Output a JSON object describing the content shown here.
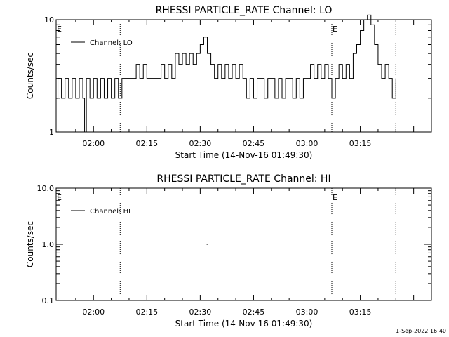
{
  "footer": {
    "timestamp": "1-Sep-2022 16:40"
  },
  "chart_data": [
    {
      "type": "line",
      "title": "RHESSI PARTICLE_RATE Channel: LO",
      "xlabel": "Start Time (14-Nov-16 01:49:30)",
      "ylabel": "Counts/sec",
      "yscale": "log",
      "xlim": [
        "01:49:30",
        "03:35:00"
      ],
      "ylim": [
        1,
        10
      ],
      "yticks": [
        1,
        10
      ],
      "ytick_labels": [
        "1",
        "10"
      ],
      "xtick_labels": [
        "02:00",
        "02:15",
        "02:30",
        "02:45",
        "03:00",
        "03:15"
      ],
      "grid": false,
      "legend_position": "top-left",
      "vlines": [
        "02:07:30",
        "03:07:00",
        "03:25:00"
      ],
      "markers": [
        {
          "x": "01:49:30",
          "label": "E"
        },
        {
          "x": "03:07:00",
          "label": "E"
        }
      ],
      "series": [
        {
          "name": "Channel: LO",
          "x": [
            "01:49:30",
            "01:50:00",
            "01:51:00",
            "01:52:00",
            "01:53:00",
            "01:54:00",
            "01:55:00",
            "01:56:00",
            "01:57:00",
            "01:57:30",
            "01:58:00",
            "01:59:00",
            "02:00:00",
            "02:01:00",
            "02:02:00",
            "02:03:00",
            "02:04:00",
            "02:05:00",
            "02:06:00",
            "02:07:00",
            "02:08:00",
            "02:10:00",
            "02:12:00",
            "02:13:00",
            "02:14:00",
            "02:15:00",
            "02:17:00",
            "02:19:00",
            "02:20:00",
            "02:21:00",
            "02:22:00",
            "02:23:00",
            "02:24:00",
            "02:25:00",
            "02:26:00",
            "02:27:00",
            "02:28:00",
            "02:29:00",
            "02:30:00",
            "02:31:00",
            "02:32:00",
            "02:33:00",
            "02:34:00",
            "02:35:00",
            "02:36:00",
            "02:37:00",
            "02:38:00",
            "02:39:00",
            "02:40:00",
            "02:41:00",
            "02:42:00",
            "02:43:00",
            "02:44:00",
            "02:45:00",
            "02:46:00",
            "02:47:00",
            "02:48:00",
            "02:49:00",
            "02:50:00",
            "02:51:00",
            "02:52:00",
            "02:53:00",
            "02:54:00",
            "02:55:00",
            "02:56:00",
            "02:57:00",
            "02:58:00",
            "02:59:00",
            "03:00:00",
            "03:01:00",
            "03:02:00",
            "03:03:00",
            "03:04:00",
            "03:05:00",
            "03:06:00",
            "03:07:00",
            "03:08:00",
            "03:09:00",
            "03:10:00",
            "03:11:00",
            "03:12:00",
            "03:13:00",
            "03:14:00",
            "03:15:00",
            "03:16:00",
            "03:17:00",
            "03:18:00",
            "03:19:00",
            "03:20:00",
            "03:21:00",
            "03:22:00",
            "03:23:00",
            "03:24:00",
            "03:25:00"
          ],
          "y": [
            2,
            3,
            2,
            3,
            2,
            3,
            2,
            3,
            2,
            1,
            3,
            2,
            3,
            2,
            3,
            2,
            3,
            2,
            3,
            2,
            3,
            3,
            4,
            3,
            4,
            3,
            3,
            4,
            3,
            4,
            3,
            5,
            4,
            5,
            4,
            5,
            4,
            5,
            6,
            7,
            5,
            4,
            3,
            4,
            3,
            4,
            3,
            4,
            3,
            4,
            3,
            2,
            3,
            2,
            3,
            3,
            2,
            3,
            3,
            2,
            3,
            2,
            3,
            3,
            2,
            3,
            2,
            3,
            3,
            4,
            3,
            4,
            3,
            4,
            3,
            2,
            3,
            4,
            3,
            4,
            3,
            5,
            6,
            8,
            10,
            11,
            9,
            6,
            4,
            3,
            4,
            3,
            2,
            3
          ]
        }
      ]
    },
    {
      "type": "line",
      "title": "RHESSI PARTICLE_RATE Channel: HI",
      "xlabel": "Start Time (14-Nov-16 01:49:30)",
      "ylabel": "Counts/sec",
      "yscale": "log",
      "xlim": [
        "01:49:30",
        "03:35:00"
      ],
      "ylim": [
        0.1,
        10
      ],
      "yticks": [
        0.1,
        1,
        10
      ],
      "ytick_labels": [
        "0.1",
        "1.0",
        "10.0"
      ],
      "xtick_labels": [
        "02:00",
        "02:15",
        "02:30",
        "02:45",
        "03:00",
        "03:15"
      ],
      "grid": false,
      "legend_position": "top-left",
      "vlines": [
        "02:07:30",
        "03:07:00",
        "03:25:00"
      ],
      "markers": [
        {
          "x": "01:49:30",
          "label": "E"
        },
        {
          "x": "03:07:00",
          "label": "E"
        }
      ],
      "series": [
        {
          "name": "Channel: HI",
          "x": [
            "02:32:00"
          ],
          "y": [
            1
          ]
        }
      ]
    }
  ]
}
